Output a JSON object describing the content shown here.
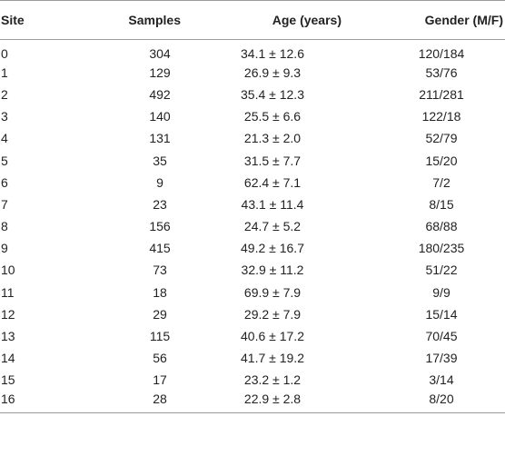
{
  "table": {
    "headers": {
      "site": "Site",
      "samples": "Samples",
      "age": "Age (years)",
      "gender": "Gender (M/F)"
    },
    "rows": [
      {
        "site": "0",
        "samples": "304",
        "age": "34.1 ± 12.6",
        "gender": "120/184"
      },
      {
        "site": "1",
        "samples": "129",
        "age": "26.9 ± 9.3",
        "gender": "53/76"
      },
      {
        "site": "2",
        "samples": "492",
        "age": "35.4 ± 12.3",
        "gender": "211/281"
      },
      {
        "site": "3",
        "samples": "140",
        "age": "25.5 ± 6.6",
        "gender": "122/18"
      },
      {
        "site": "4",
        "samples": "131",
        "age": "21.3 ± 2.0",
        "gender": "52/79"
      },
      {
        "site": "5",
        "samples": "35",
        "age": "31.5 ± 7.7",
        "gender": "15/20"
      },
      {
        "site": "6",
        "samples": "9",
        "age": "62.4 ± 7.1",
        "gender": "7/2"
      },
      {
        "site": "7",
        "samples": "23",
        "age": "43.1 ± 11.4",
        "gender": "8/15"
      },
      {
        "site": "8",
        "samples": "156",
        "age": "24.7 ± 5.2",
        "gender": "68/88"
      },
      {
        "site": "9",
        "samples": "415",
        "age": "49.2 ± 16.7",
        "gender": "180/235"
      },
      {
        "site": "10",
        "samples": "73",
        "age": "32.9 ± 11.2",
        "gender": "51/22"
      },
      {
        "site": "11",
        "samples": "18",
        "age": "69.9 ± 7.9",
        "gender": "9/9"
      },
      {
        "site": "12",
        "samples": "29",
        "age": "29.2 ± 7.9",
        "gender": "15/14"
      },
      {
        "site": "13",
        "samples": "115",
        "age": "40.6 ± 17.2",
        "gender": "70/45"
      },
      {
        "site": "14",
        "samples": "56",
        "age": "41.7 ± 19.2",
        "gender": "17/39"
      },
      {
        "site": "15",
        "samples": "17",
        "age": "23.2 ± 1.2",
        "gender": "3/14"
      },
      {
        "site": "16",
        "samples": "28",
        "age": "22.9 ± 2.8",
        "gender": "8/20"
      }
    ]
  }
}
